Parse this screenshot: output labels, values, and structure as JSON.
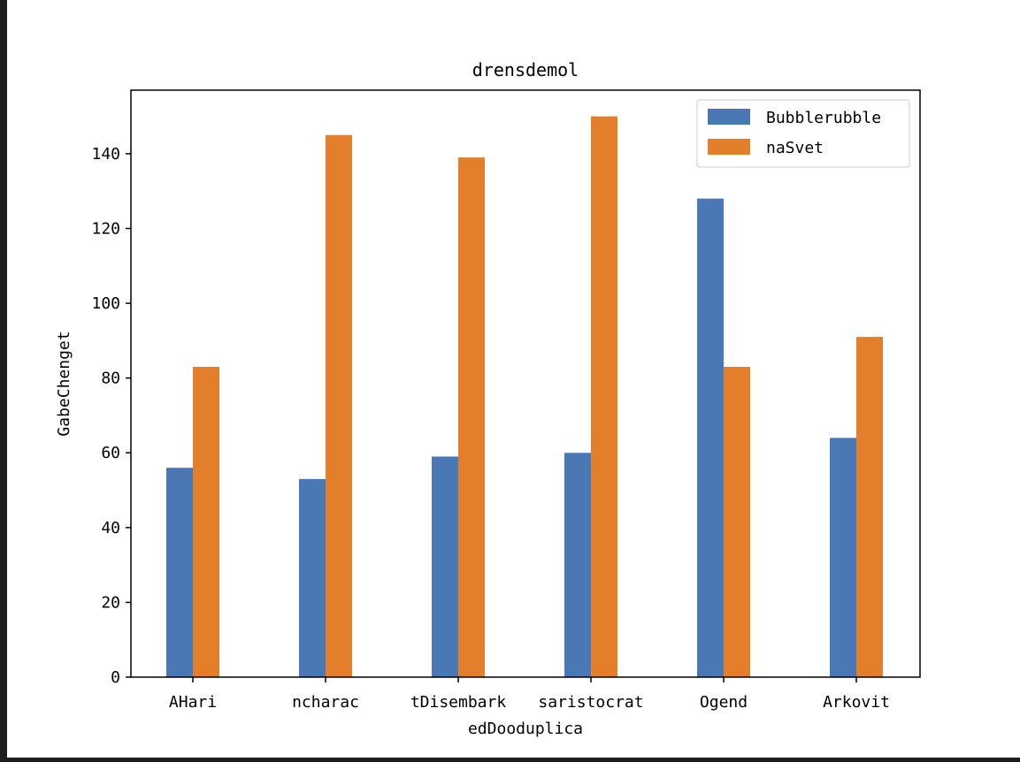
{
  "chart_data": {
    "type": "bar",
    "title": "drensdemol",
    "xlabel": "edDooduplica",
    "ylabel": "GabeChenget",
    "categories": [
      "AHari",
      "ncharac",
      "tDisembark",
      "saristocrat",
      "Ogend",
      "Arkovit"
    ],
    "series": [
      {
        "name": "Bubblerubble",
        "color": "#4a78b4",
        "values": [
          56,
          53,
          59,
          60,
          128,
          64
        ]
      },
      {
        "name": "naSvet",
        "color": "#e37f2a",
        "values": [
          83,
          145,
          139,
          150,
          83,
          91
        ]
      }
    ],
    "ylim": [
      0,
      157
    ],
    "yticks": [
      0,
      20,
      40,
      60,
      80,
      100,
      120,
      140
    ],
    "grid": false,
    "legend_position": "top-right"
  }
}
